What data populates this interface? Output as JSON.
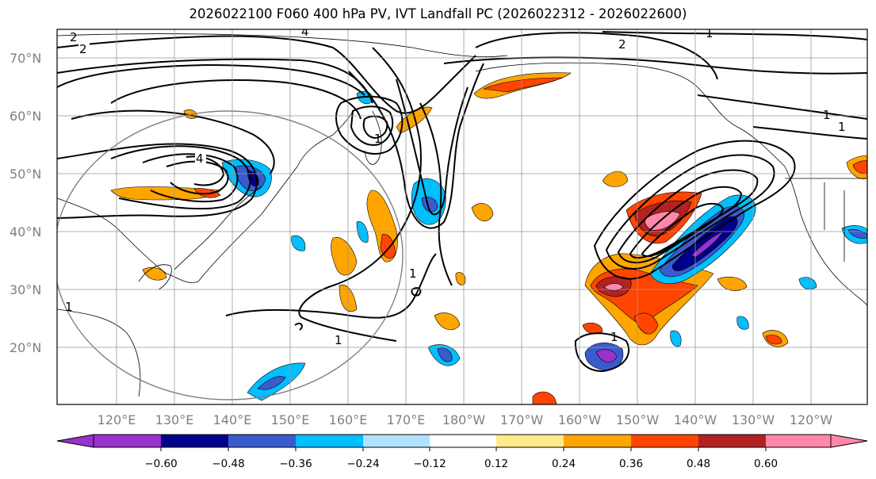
{
  "title": "2026022100 F060 400 hPa PV, IVT Landfall PC (2026022312 - 2026022600)",
  "lat_labels": [
    "70°N",
    "60°N",
    "50°N",
    "40°N",
    "30°N",
    "20°N"
  ],
  "lon_labels": [
    "120°E",
    "130°E",
    "140°E",
    "150°E",
    "160°E",
    "170°E",
    "180°W",
    "170°W",
    "160°W",
    "150°W",
    "140°W",
    "130°W",
    "120°W"
  ],
  "contour_labels": [
    "2",
    "2",
    "2",
    "4",
    "1",
    "1",
    "4",
    "1",
    "1",
    "1",
    "1",
    "1",
    "1"
  ],
  "colorbar": {
    "ticks": [
      "−0.60",
      "−0.48",
      "−0.36",
      "−0.24",
      "−0.12",
      "0.12",
      "0.24",
      "0.36",
      "0.48",
      "0.60"
    ],
    "colors": [
      "#9932cc",
      "#00008b",
      "#3a5bcd",
      "#00bfff",
      "#b0e2ff",
      "#ffffff",
      "#ffeb8a",
      "#ffa500",
      "#ff4500",
      "#b22222",
      "#ff88aa"
    ]
  }
}
